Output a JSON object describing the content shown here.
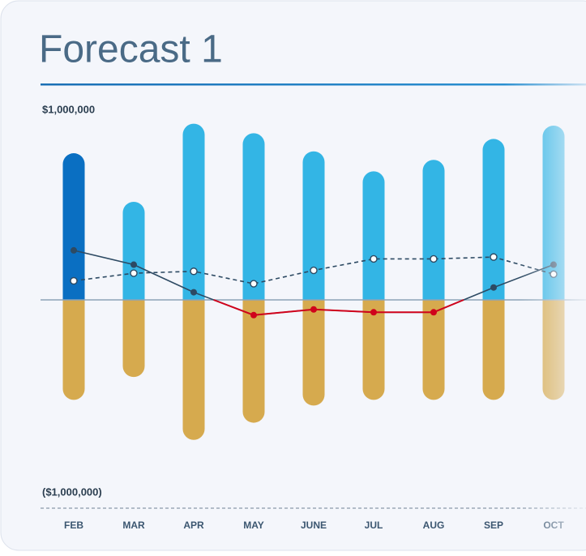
{
  "chart_data": {
    "type": "bar-line",
    "title": "Forecast 1",
    "categories": [
      "FEB",
      "MAR",
      "APR",
      "MAY",
      "JUNE",
      "JUL",
      "AUG",
      "SEP",
      "OCT"
    ],
    "ylim": [
      -1000000,
      1000000
    ],
    "yticks": [
      {
        "value": 1000000,
        "label": "$1,000,000"
      },
      {
        "value": -1000000,
        "label": "($1,000,000)"
      }
    ],
    "series": [
      {
        "type": "bar",
        "colors": [
          "#0a6fc2",
          "#33b5e5",
          "#33b5e5",
          "#33b5e5",
          "#33b5e5",
          "#33b5e5",
          "#33b5e5",
          "#33b5e5",
          "#33b5e5"
        ],
        "values": [
          770000,
          515000,
          925000,
          875000,
          780000,
          675000,
          735000,
          845000,
          915000
        ]
      },
      {
        "type": "bar",
        "color": "#d6aa4e",
        "values": [
          -525000,
          -405000,
          -735000,
          -645000,
          -555000,
          -525000,
          -525000,
          -525000,
          -525000
        ]
      },
      {
        "type": "line",
        "color": "#2d4a63",
        "negative_color": "#d0021b",
        "values": [
          260000,
          185000,
          40000,
          -80000,
          -50000,
          -65000,
          -65000,
          65000,
          185000
        ]
      },
      {
        "type": "line",
        "color": "#2d4a63",
        "dashed": true,
        "values": [
          100000,
          140000,
          150000,
          85000,
          155000,
          215000,
          215000,
          225000,
          135000
        ]
      }
    ]
  }
}
